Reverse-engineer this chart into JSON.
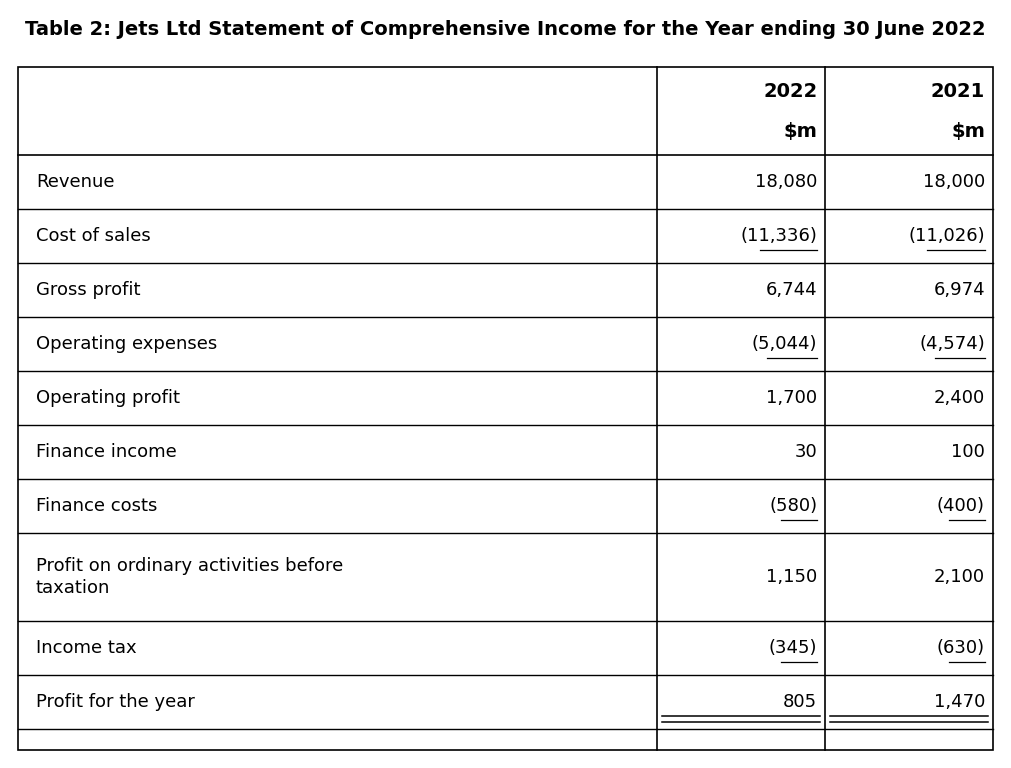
{
  "title": "Table 2: Jets Ltd Statement of Comprehensive Income for the Year ending 30 June 2022",
  "title_fontsize": 14,
  "rows": [
    {
      "label": "Revenue",
      "val2022": "18,080",
      "val2021": "18,000",
      "paren2022": false,
      "paren2021": false,
      "underline2022": false,
      "underline2021": false
    },
    {
      "label": "Cost of sales",
      "val2022": "(11,336)",
      "val2021": "(11,026)",
      "paren2022": true,
      "paren2021": true,
      "underline2022": false,
      "underline2021": false
    },
    {
      "label": "Gross profit",
      "val2022": "6,744",
      "val2021": "6,974",
      "paren2022": false,
      "paren2021": false,
      "underline2022": false,
      "underline2021": false
    },
    {
      "label": "Operating expenses",
      "val2022": "(5,044)",
      "val2021": "(4,574)",
      "paren2022": true,
      "paren2021": true,
      "underline2022": false,
      "underline2021": false
    },
    {
      "label": "Operating profit",
      "val2022": "1,700",
      "val2021": "2,400",
      "paren2022": false,
      "paren2021": false,
      "underline2022": false,
      "underline2021": false
    },
    {
      "label": "Finance income",
      "val2022": "30",
      "val2021": "100",
      "paren2022": false,
      "paren2021": false,
      "underline2022": false,
      "underline2021": false
    },
    {
      "label": "Finance costs",
      "val2022": "(580)",
      "val2021": "(400)",
      "paren2022": true,
      "paren2021": true,
      "underline2022": false,
      "underline2021": false
    },
    {
      "label": "Profit on ordinary activities before\ntaxation",
      "val2022": "1,150",
      "val2021": "2,100",
      "paren2022": false,
      "paren2021": false,
      "underline2022": false,
      "underline2021": false
    },
    {
      "label": "Income tax",
      "val2022": "(345)",
      "val2021": "(630)",
      "paren2022": true,
      "paren2021": true,
      "underline2022": false,
      "underline2021": false
    },
    {
      "label": "Profit for the year",
      "val2022": "805",
      "val2021": "1,470",
      "paren2022": false,
      "paren2021": false,
      "underline2022": true,
      "underline2021": true
    }
  ],
  "bg_color": "#ffffff",
  "text_color": "#000000",
  "border_color": "#000000",
  "body_fontsize": 13,
  "header_fontsize": 14,
  "title_color": "#000000"
}
